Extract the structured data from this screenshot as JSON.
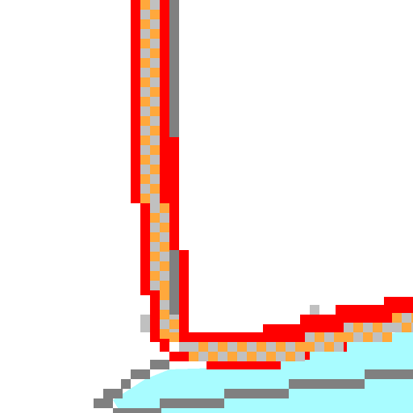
{
  "scene": {
    "background": "#ffffff",
    "palette": {
      "outline_red": "#ff0000",
      "fill_orange": "#ffa83c",
      "fill_grey": "#c0c0c0",
      "edge_grey": "#808080",
      "water_cyan": "#a8fcff"
    },
    "icons": {
      "track": "pixel-track-icon",
      "water": "water-shore-icon"
    }
  }
}
